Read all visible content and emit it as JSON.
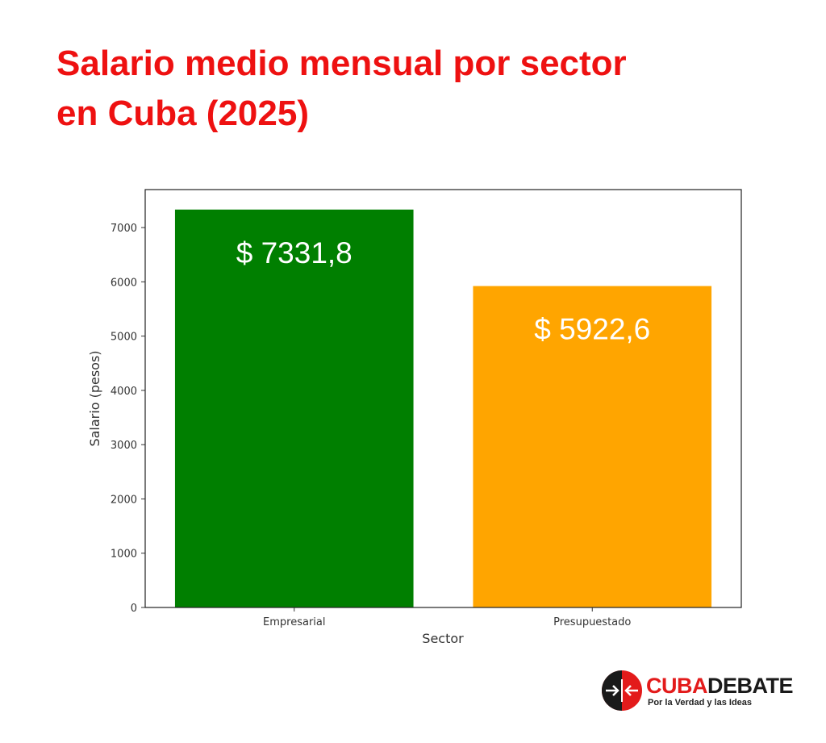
{
  "header": {
    "title_line1": "Salario medio mensual por sector",
    "title_line2": "en Cuba (2025)"
  },
  "colors": {
    "title": "#ee1111",
    "empresarial": "#007f00",
    "presupuestado": "#ffa500",
    "logo_red": "#e31b1b",
    "logo_dark": "#1a1a1a"
  },
  "chart_data": {
    "type": "bar",
    "categories": [
      "Empresarial",
      "Presupuestado"
    ],
    "values": [
      7331.8,
      5922.6
    ],
    "data_labels": [
      "$ 7331,8",
      "$ 5922,6"
    ],
    "colors": [
      "#007f00",
      "#ffa500"
    ],
    "xlabel": "Sector",
    "ylabel": "Salario (pesos)",
    "ylim": [
      0,
      7700
    ],
    "yticks": [
      0,
      1000,
      2000,
      3000,
      4000,
      5000,
      6000,
      7000
    ],
    "grid": false
  },
  "logo": {
    "brand_part1": "CUBA",
    "brand_part2": "DEBATE",
    "tagline": "Por la Verdad y las Ideas"
  }
}
